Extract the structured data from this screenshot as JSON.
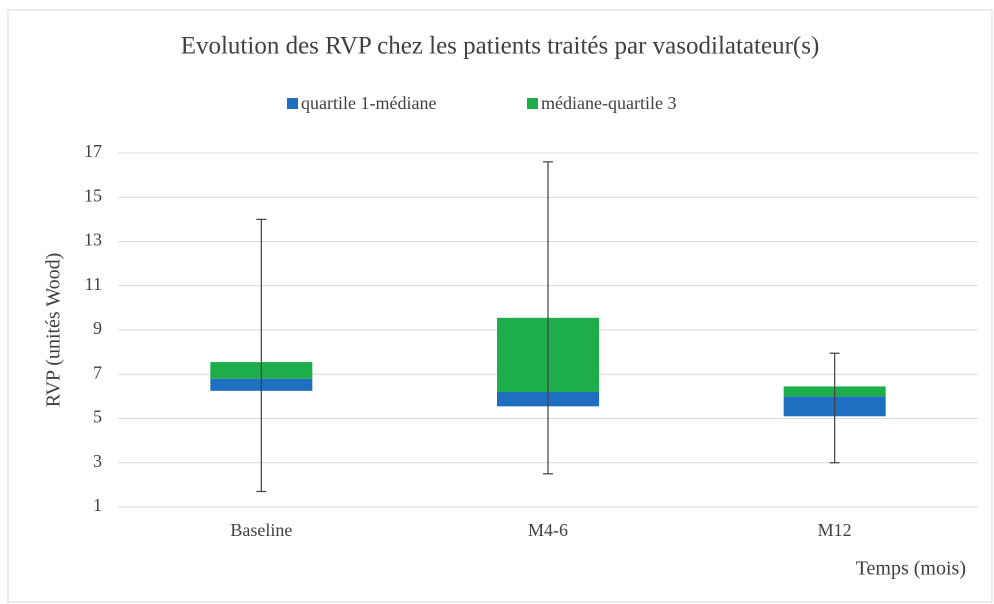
{
  "chart_data": {
    "type": "box",
    "title": "Evolution des RVP chez les patients traités par vasodilatateur(s)",
    "xlabel": "Temps (mois)",
    "ylabel": "RVP (unités Wood)",
    "categories": [
      "Baseline",
      "M4-6",
      "M12"
    ],
    "min": [
      1.7,
      2.5,
      3.0
    ],
    "q1": [
      6.25,
      5.55,
      5.1
    ],
    "median": [
      6.8,
      6.2,
      6.0
    ],
    "q3": [
      7.55,
      9.55,
      6.45
    ],
    "max": [
      14.0,
      16.6,
      7.95
    ],
    "series": [
      {
        "name": "quartile 1-médiane",
        "color": "#1f6fc0"
      },
      {
        "name": "médiane-quartile 3",
        "color": "#1ead4b"
      }
    ],
    "ylim": [
      1,
      17
    ],
    "yticks": [
      1,
      3,
      5,
      7,
      9,
      11,
      13,
      15,
      17
    ],
    "grid": true,
    "legend": "top"
  }
}
